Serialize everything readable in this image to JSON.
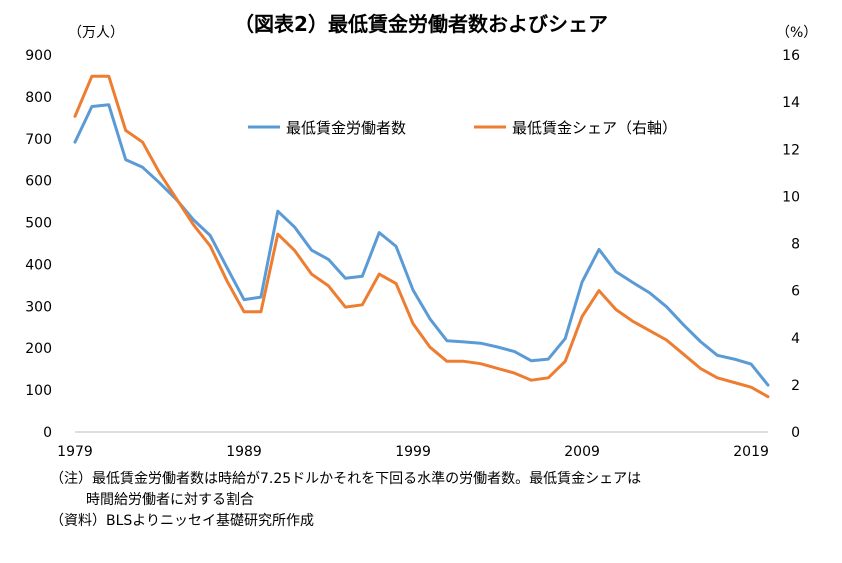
{
  "title": "（図表2）最低賃金労働者数およびシェア",
  "y_left_unit": "（万人）",
  "y_right_unit": "（%）",
  "notes": {
    "line1": "（注）最低賃金労働者数は時給が7.25ドルかそれを下回る水準の労働者数。最低賃金シェアは",
    "line2": "時間給労働者に対する割合",
    "line3": "（資料）BLSよりニッセイ基礎研究所作成"
  },
  "chart_data": {
    "type": "line",
    "x": [
      1979,
      1980,
      1981,
      1982,
      1983,
      1984,
      1985,
      1986,
      1987,
      1988,
      1989,
      1990,
      1991,
      1992,
      1993,
      1994,
      1995,
      1996,
      1997,
      1998,
      1999,
      2000,
      2001,
      2002,
      2003,
      2004,
      2005,
      2006,
      2007,
      2008,
      2009,
      2010,
      2011,
      2012,
      2013,
      2014,
      2015,
      2016,
      2017,
      2018,
      2019,
      2020
    ],
    "x_ticks": [
      1979,
      1989,
      1999,
      2009,
      2019
    ],
    "y_left_ticks": [
      0,
      100,
      200,
      300,
      400,
      500,
      600,
      700,
      800,
      900
    ],
    "y_right_ticks": [
      0,
      2,
      4,
      6,
      8,
      10,
      12,
      14,
      16
    ],
    "ylim_left": [
      0,
      900
    ],
    "ylim_right": [
      0,
      16
    ],
    "legend_position": "top-center",
    "grid": false,
    "series": [
      {
        "name": "最低賃金労働者数",
        "axis": "left",
        "color": "#5B9BD5",
        "values": [
          692,
          777,
          781,
          650,
          632,
          595,
          555,
          507,
          469,
          392,
          316,
          322,
          527,
          489,
          434,
          412,
          367,
          372,
          476,
          443,
          339,
          270,
          218,
          215,
          212,
          203,
          192,
          170,
          174,
          223,
          358,
          436,
          383,
          357,
          332,
          299,
          256,
          216,
          183,
          174,
          162,
          112
        ]
      },
      {
        "name": "最低賃金シェア（右軸）",
        "axis": "right",
        "color": "#ED7D31",
        "values": [
          13.4,
          15.1,
          15.1,
          12.8,
          12.3,
          11.0,
          9.9,
          8.8,
          7.9,
          6.4,
          5.1,
          5.1,
          8.4,
          7.7,
          6.7,
          6.2,
          5.3,
          5.4,
          6.7,
          6.3,
          4.6,
          3.6,
          3.0,
          3.0,
          2.9,
          2.7,
          2.5,
          2.2,
          2.3,
          3.0,
          4.9,
          6.0,
          5.2,
          4.7,
          4.3,
          3.9,
          3.3,
          2.7,
          2.3,
          2.1,
          1.9,
          1.5
        ]
      }
    ]
  }
}
